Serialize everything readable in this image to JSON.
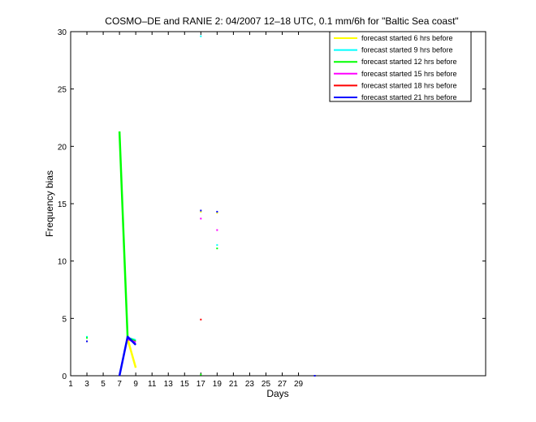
{
  "chart_data": {
    "type": "line",
    "title": "COSMO–DE and RANIE 2: 04/2007 12–18 UTC, 0.1 mm/6h for \"Baltic Sea coast\"",
    "xlabel": "Days",
    "ylabel": "Frequency bias",
    "xlim": [
      1,
      52
    ],
    "ylim": [
      0,
      30
    ],
    "xticks": [
      1,
      3,
      5,
      7,
      9,
      11,
      13,
      15,
      17,
      19,
      21,
      23,
      25,
      27,
      29
    ],
    "yticks": [
      0,
      5,
      10,
      15,
      20,
      25,
      30
    ],
    "legend_position": "top-right",
    "grid": false,
    "series": [
      {
        "name": "forecast started 6 hrs before",
        "color": "#ffff00",
        "segments": [
          [
            [
              8,
              3.2
            ],
            [
              9,
              0.7
            ]
          ]
        ],
        "points": [
          [
            3,
            3.0
          ],
          [
            17,
            14.3
          ],
          [
            19,
            14.2
          ]
        ]
      },
      {
        "name": "forecast started 9 hrs before",
        "color": "#00ffff",
        "segments": [
          [
            [
              8,
              3.3
            ],
            [
              9,
              3.1
            ]
          ]
        ],
        "points": [
          [
            3,
            3.4
          ],
          [
            17,
            29.6
          ],
          [
            19,
            11.4
          ]
        ]
      },
      {
        "name": "forecast started 12 hrs before",
        "color": "#00ff00",
        "segments": [
          [
            [
              7,
              21.3
            ],
            [
              8,
              3.3
            ],
            [
              9,
              3.0
            ]
          ]
        ],
        "points": [
          [
            3,
            3.3
          ],
          [
            17,
            0.1
          ],
          [
            19,
            11.1
          ]
        ]
      },
      {
        "name": "forecast started 15 hrs before",
        "color": "#ff00ff",
        "segments": [
          [
            [
              8,
              3.2
            ],
            [
              9,
              2.9
            ]
          ]
        ],
        "points": [
          [
            17,
            13.7
          ],
          [
            19,
            12.7
          ]
        ]
      },
      {
        "name": "forecast started 18 hrs before",
        "color": "#ff0000",
        "segments": [],
        "points": [
          [
            17,
            4.9
          ]
        ]
      },
      {
        "name": "forecast started 21 hrs before",
        "color": "#0000ff",
        "segments": [
          [
            [
              7,
              0.0
            ],
            [
              8,
              3.4
            ],
            [
              9,
              2.7
            ]
          ]
        ],
        "points": [
          [
            3,
            3.0
          ],
          [
            17,
            14.4
          ],
          [
            19,
            14.3
          ],
          [
            31,
            0.0
          ]
        ]
      }
    ]
  }
}
